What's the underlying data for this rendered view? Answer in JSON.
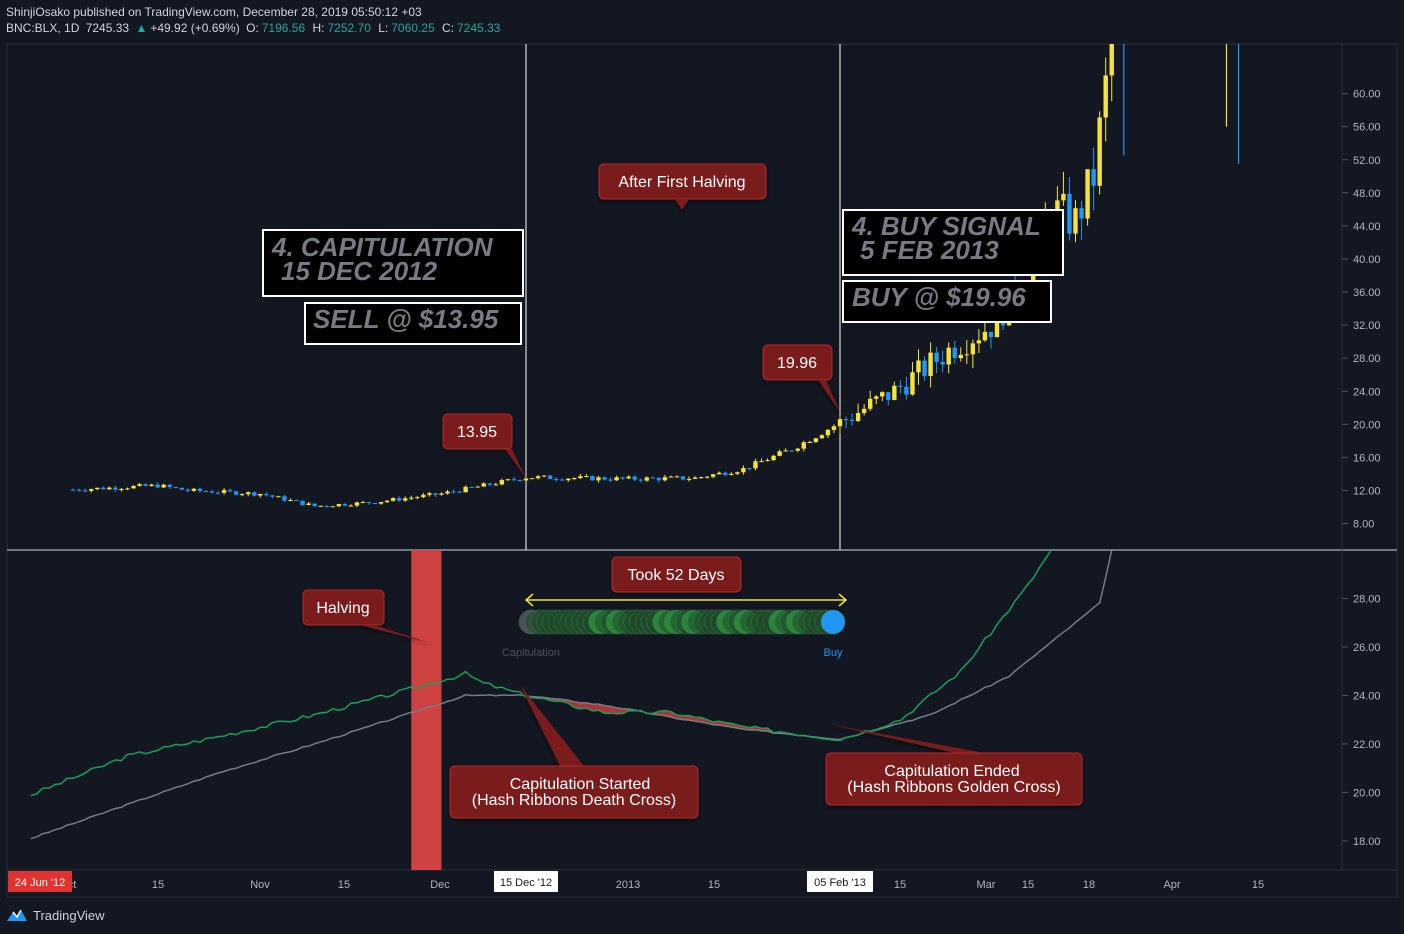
{
  "header": {
    "published": "ShinjiOsako published on TradingView.com, December 28, 2019 05:50:12 +03",
    "symbol": "BNC:BLX, 1D",
    "last": "7245.33",
    "change_arrow": "▲",
    "change": "+49.92 (+0.69%)",
    "o_label": "O:",
    "o_val": "7196.56",
    "h_label": "H:",
    "h_val": "7252.70",
    "l_label": "L:",
    "l_val": "7060.25",
    "c_label": "C:",
    "c_val": "7245.33"
  },
  "brand": {
    "name": "TradingView",
    "icon": "tradingview-logo-icon"
  },
  "colors": {
    "background": "#131722",
    "candle_up": "#f5e33b",
    "candle_down": "#2196f3",
    "hash_fast": "#1e9e55",
    "hash_slow": "#787b86",
    "callout": "#7a1a1d",
    "callout_border": "#b42a2f",
    "halving_band": "#d94444",
    "axis_text": "#b2b5be"
  },
  "annotations": {
    "after_halving": "After First Halving",
    "capitulation_title_1": "4. CAPITULATION",
    "capitulation_title_2": "15 DEC 2012",
    "sell": "SELL @ $13.95",
    "buy_signal_1": "4. BUY SIGNAL",
    "buy_signal_2": "5 FEB 2013",
    "buy": "BUY @ $19.96",
    "price_sell": "13.95",
    "price_buy": "19.96",
    "halving": "Halving",
    "took_days": "Took 52 Days",
    "cap_started_1": "Capitulation Started",
    "cap_started_2": "(Hash Ribbons Death Cross)",
    "cap_ended_1": "Capitulation Ended",
    "cap_ended_2": "(Hash Ribbons Golden Cross)",
    "legend_capitulation": "Capitulation",
    "legend_buy": "Buy"
  },
  "time_axis": {
    "ticks": [
      "ct",
      "15",
      "Nov",
      "15",
      "Dec",
      "2013",
      "15",
      "15",
      "Mar",
      "15",
      "18",
      "Apr",
      "15"
    ],
    "tick_positions": [
      72,
      158,
      260,
      344,
      440,
      628,
      714,
      900,
      986,
      1028,
      1089,
      1172,
      1258
    ],
    "start_label": "24 Jun '12",
    "cap_date_label": "15 Dec '12",
    "buy_date_label": "05 Feb '13"
  },
  "chart_data": [
    {
      "type": "candlestick",
      "name": "BNC:BLX price",
      "y_ticks": [
        "8.00",
        "12.00",
        "16.00",
        "20.00",
        "24.00",
        "28.00",
        "32.00",
        "36.00",
        "40.00",
        "44.00",
        "48.00",
        "52.00",
        "56.00",
        "60.00"
      ],
      "ylim": [
        4.8,
        66
      ],
      "scale": "linear",
      "x_range": [
        "2012-10-01",
        "2013-04-30"
      ],
      "vlines": [
        "2012-12-15",
        "2013-02-05"
      ],
      "anchor_points": [
        {
          "x": "2012-10-01",
          "y": 12.1
        },
        {
          "x": "2012-10-15",
          "y": 12.6
        },
        {
          "x": "2012-10-20",
          "y": 12.0
        },
        {
          "x": "2012-11-01",
          "y": 11.6
        },
        {
          "x": "2012-11-10",
          "y": 10.1
        },
        {
          "x": "2012-11-20",
          "y": 10.6
        },
        {
          "x": "2012-12-01",
          "y": 11.6
        },
        {
          "x": "2012-12-15",
          "y": 13.6
        },
        {
          "x": "2013-01-01",
          "y": 13.4
        },
        {
          "x": "2013-01-12",
          "y": 13.5
        },
        {
          "x": "2013-01-20",
          "y": 14.6
        },
        {
          "x": "2013-01-28",
          "y": 17.0
        },
        {
          "x": "2013-02-05",
          "y": 20.2
        },
        {
          "x": "2013-02-14",
          "y": 24.0
        },
        {
          "x": "2013-02-24",
          "y": 29.5
        },
        {
          "x": "2013-03-02",
          "y": 32.0
        },
        {
          "x": "2013-03-08",
          "y": 38.0
        },
        {
          "x": "2013-03-12",
          "y": 46.0
        },
        {
          "x": "2013-03-16",
          "y": 44.5
        },
        {
          "x": "2013-03-19",
          "y": 50.0
        },
        {
          "x": "2013-03-22",
          "y": 66.0
        }
      ],
      "late_candles": [
        {
          "x": "2013-03-24",
          "open": 66,
          "close": 66,
          "high": 66,
          "low": 52.5,
          "dir": "down"
        },
        {
          "x": "2013-04-10",
          "open": 66,
          "close": 66,
          "high": 66,
          "low": 56.0,
          "dir": "up"
        },
        {
          "x": "2013-04-12",
          "open": 66,
          "close": 66,
          "high": 66,
          "low": 51.5,
          "dir": "down"
        }
      ]
    },
    {
      "type": "line",
      "name": "Hash Ribbons",
      "y_ticks": [
        "18.00",
        "20.00",
        "22.00",
        "24.00",
        "26.00",
        "28.00"
      ],
      "ylim": [
        16.8,
        30
      ],
      "series": [
        {
          "role": "fast",
          "color": "#1e9e55",
          "points": [
            {
              "x": "2012-09-24",
              "y": 19.9
            },
            {
              "x": "2012-10-10",
              "y": 21.5
            },
            {
              "x": "2012-10-25",
              "y": 22.3
            },
            {
              "x": "2012-11-10",
              "y": 23.2
            },
            {
              "x": "2012-11-25",
              "y": 24.2
            },
            {
              "x": "2012-12-05",
              "y": 24.9
            },
            {
              "x": "2012-12-08",
              "y": 24.5
            },
            {
              "x": "2012-12-15",
              "y": 24.0
            },
            {
              "x": "2012-12-28",
              "y": 23.3
            },
            {
              "x": "2013-01-08",
              "y": 23.3
            },
            {
              "x": "2013-01-20",
              "y": 22.7
            },
            {
              "x": "2013-02-05",
              "y": 22.2
            },
            {
              "x": "2013-02-15",
              "y": 23.0
            },
            {
              "x": "2013-02-25",
              "y": 25.0
            },
            {
              "x": "2013-03-08",
              "y": 28.5
            },
            {
              "x": "2013-03-12",
              "y": 30.0
            }
          ]
        },
        {
          "role": "slow",
          "color": "#787b86",
          "points": [
            {
              "x": "2012-09-24",
              "y": 18.1
            },
            {
              "x": "2012-10-10",
              "y": 19.5
            },
            {
              "x": "2012-10-25",
              "y": 20.8
            },
            {
              "x": "2012-11-10",
              "y": 22.0
            },
            {
              "x": "2012-11-25",
              "y": 23.2
            },
            {
              "x": "2012-12-05",
              "y": 24.0
            },
            {
              "x": "2012-12-15",
              "y": 24.0
            },
            {
              "x": "2012-12-28",
              "y": 23.6
            },
            {
              "x": "2013-01-08",
              "y": 23.1
            },
            {
              "x": "2013-01-20",
              "y": 22.6
            },
            {
              "x": "2013-02-05",
              "y": 22.2
            },
            {
              "x": "2013-02-20",
              "y": 23.2
            },
            {
              "x": "2013-03-05",
              "y": 24.8
            },
            {
              "x": "2013-03-20",
              "y": 27.8
            },
            {
              "x": "2013-03-22",
              "y": 30.0
            }
          ]
        }
      ],
      "halving_band": [
        "2012-11-26",
        "2012-12-01"
      ],
      "capitulation_to_buy_days": 52
    }
  ]
}
